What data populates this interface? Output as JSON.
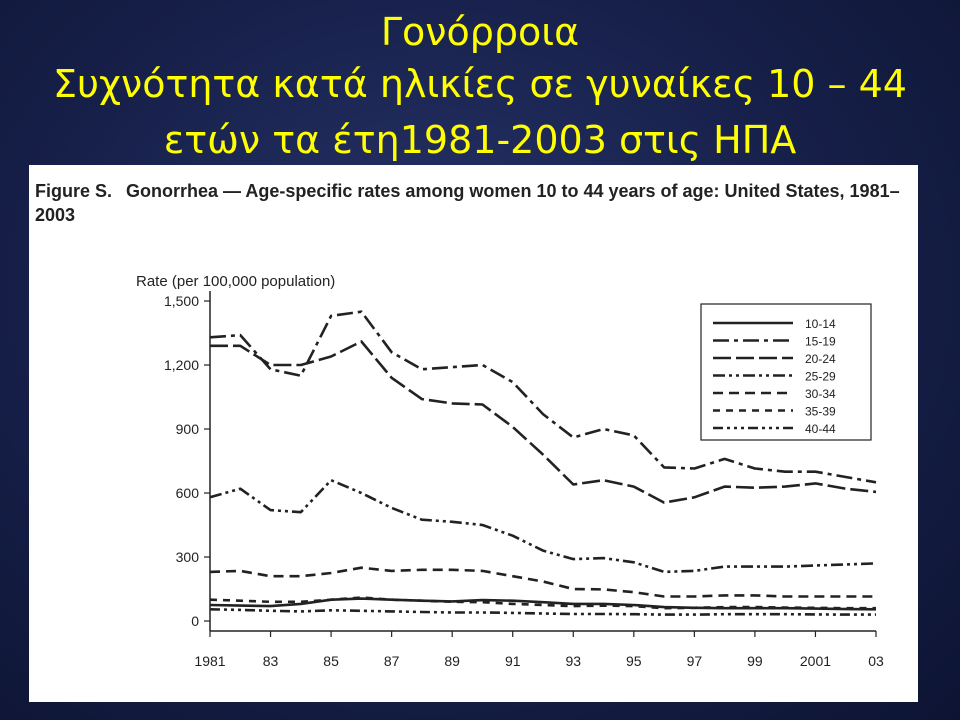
{
  "slide": {
    "title_line1": "Γονόρροια",
    "title_line2": "Συχνότητα κατά ηλικίες σε γυναίκες 10 – 44",
    "title_line3": "ετών τα έτη1981-2003 στις ΗΠΑ"
  },
  "colors": {
    "title": "#ffff00",
    "background": "#161f48",
    "panel": "#ffffff",
    "ink": "#222222"
  },
  "figure": {
    "label": "Figure S.",
    "caption": "Gonorrhea — Age-specific rates among women 10 to 44 years of age: United States, 1981–2003"
  },
  "chart_data": {
    "type": "line",
    "ylabel": "Rate (per 100,000 population)",
    "ylim": [
      0,
      1500
    ],
    "yticks": [
      0,
      300,
      600,
      900,
      1200,
      1500
    ],
    "ytick_labels": [
      "0",
      "300",
      "600",
      "900",
      "1,200",
      "1,500"
    ],
    "x": [
      1981,
      1982,
      1983,
      1984,
      1985,
      1986,
      1987,
      1988,
      1989,
      1990,
      1991,
      1992,
      1993,
      1994,
      1995,
      1996,
      1997,
      1998,
      1999,
      2000,
      2001,
      2002,
      2003
    ],
    "xticks": [
      1981,
      1983,
      1985,
      1987,
      1989,
      1991,
      1993,
      1995,
      1997,
      1999,
      2001,
      2003
    ],
    "xtick_labels": [
      "1981",
      "83",
      "85",
      "87",
      "89",
      "91",
      "93",
      "95",
      "97",
      "99",
      "2001",
      "03"
    ],
    "legend_position": "top-right",
    "grid": false,
    "series": [
      {
        "name": "10-14",
        "dash": "solid",
        "values": [
          75,
          72,
          70,
          80,
          100,
          105,
          100,
          95,
          92,
          98,
          95,
          88,
          80,
          80,
          75,
          65,
          62,
          60,
          60,
          60,
          58,
          56,
          55
        ]
      },
      {
        "name": "15-19",
        "dash": "dashdot",
        "values": [
          1330,
          1340,
          1180,
          1150,
          1430,
          1450,
          1260,
          1180,
          1190,
          1200,
          1120,
          970,
          860,
          900,
          870,
          720,
          715,
          760,
          715,
          700,
          700,
          675,
          650
        ]
      },
      {
        "name": "20-24",
        "dash": "longdash",
        "values": [
          1290,
          1290,
          1200,
          1200,
          1240,
          1310,
          1140,
          1040,
          1020,
          1015,
          910,
          780,
          640,
          660,
          630,
          555,
          580,
          630,
          625,
          630,
          645,
          620,
          605
        ]
      },
      {
        "name": "25-29",
        "dash": "dashdotdot",
        "values": [
          580,
          620,
          520,
          510,
          660,
          600,
          530,
          475,
          465,
          450,
          400,
          330,
          290,
          295,
          275,
          230,
          235,
          255,
          255,
          255,
          260,
          265,
          270
        ]
      },
      {
        "name": "30-34",
        "dash": "dashed",
        "values": [
          230,
          235,
          210,
          210,
          225,
          250,
          235,
          240,
          240,
          235,
          210,
          185,
          150,
          148,
          135,
          115,
          115,
          120,
          120,
          115,
          115,
          115,
          115
        ]
      },
      {
        "name": "35-39",
        "dash": "shortdash",
        "values": [
          100,
          95,
          90,
          90,
          100,
          110,
          100,
          95,
          90,
          88,
          80,
          75,
          70,
          72,
          70,
          60,
          62,
          65,
          65,
          63,
          62,
          60,
          60
        ]
      },
      {
        "name": "40-44",
        "dash": "dashdotdotdot",
        "values": [
          55,
          52,
          48,
          45,
          50,
          48,
          45,
          42,
          40,
          40,
          38,
          35,
          33,
          33,
          32,
          30,
          30,
          32,
          32,
          32,
          31,
          30,
          30
        ]
      }
    ]
  }
}
